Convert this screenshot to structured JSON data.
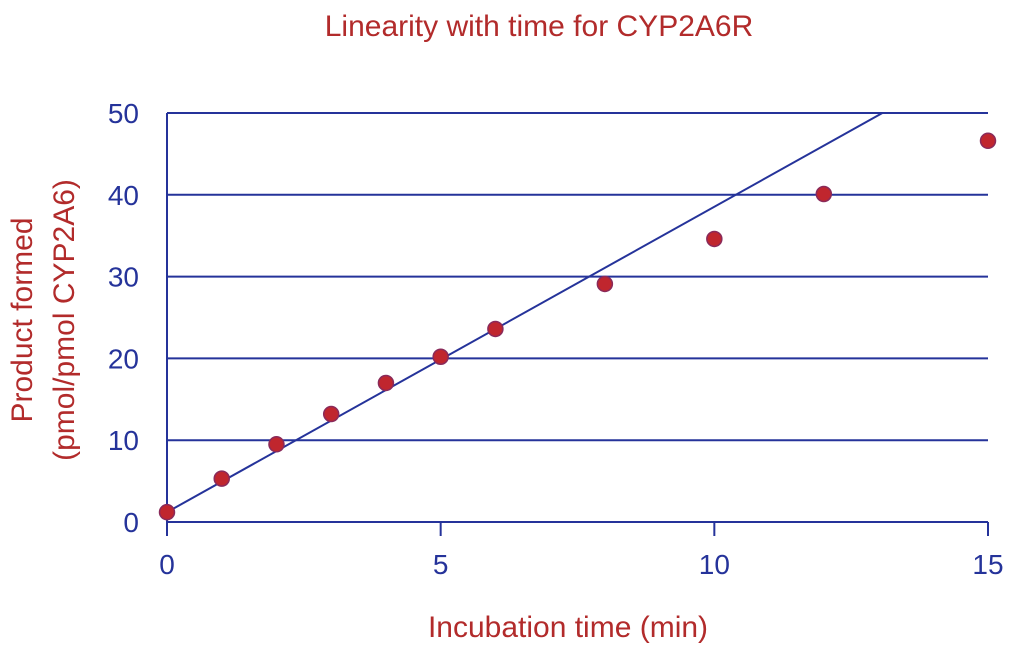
{
  "colors": {
    "axis": "#25339a",
    "text_accent": "#b22b2b",
    "marker": "#c0262e"
  },
  "chart_data": {
    "type": "scatter",
    "title": "Linearity with time for CYP2A6R",
    "xlabel": "Incubation time (min)",
    "ylabel_line1": "Product formed",
    "ylabel_line2": "(pmol/pmol CYP2A6)",
    "xlim": [
      0,
      15
    ],
    "ylim": [
      0,
      50
    ],
    "xticks": [
      "0",
      "5",
      "10",
      "15"
    ],
    "yticks": [
      "0",
      "10",
      "20",
      "30",
      "40",
      "50"
    ],
    "grid": "horizontal",
    "series": [
      {
        "x": [
          0,
          1,
          2,
          3,
          4,
          5,
          6,
          8,
          10,
          12,
          15
        ],
        "y": [
          1.2,
          5.3,
          9.5,
          13.2,
          17.0,
          20.2,
          23.6,
          29.1,
          34.6,
          40.1,
          46.6
        ]
      }
    ],
    "trendline": {
      "type": "linear",
      "x": [
        0,
        13.07
      ],
      "y": [
        1.2,
        50
      ]
    }
  }
}
